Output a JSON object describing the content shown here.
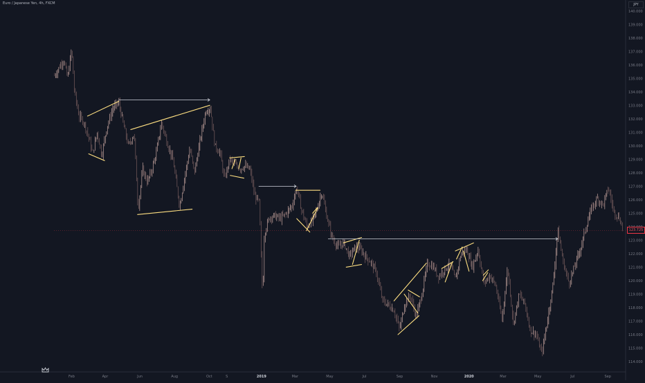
{
  "header": {
    "symbol": "Euro / Japanese Yen, 4h, FXCM"
  },
  "price_axis": {
    "currency_label": "JPY",
    "current_price_label": "123.725"
  },
  "colors": {
    "background": "#131722",
    "axis_line": "#2a2e39",
    "candle_up": "#c8a6a0",
    "candle_down": "#7a5f5f",
    "trendline": "#ffe082",
    "horizontal_ray": "#d1d4dc",
    "price_tag": "#f23645",
    "axis_text": "#787b86"
  },
  "icons": {
    "logo": "crown-logo-icon"
  },
  "chart_data": {
    "type": "line",
    "x_unit": "date",
    "ylim": [
      114,
      140.5
    ],
    "xlim": [
      "2018-01-01",
      "2020-09-30"
    ],
    "y_ticks": [
      "140.000",
      "139.000",
      "138.000",
      "137.000",
      "136.000",
      "135.000",
      "134.000",
      "133.000",
      "132.000",
      "131.000",
      "130.000",
      "129.000",
      "128.000",
      "127.000",
      "126.000",
      "125.000",
      "124.000",
      "123.000",
      "122.000",
      "121.000",
      "120.000",
      "119.000",
      "118.000",
      "117.000",
      "116.000",
      "115.000",
      "114.000"
    ],
    "x_ticks": [
      {
        "label": "Feb",
        "date": "2018-02-01"
      },
      {
        "label": "Apr",
        "date": "2018-04-01"
      },
      {
        "label": "Jun",
        "date": "2018-06-01"
      },
      {
        "label": "Aug",
        "date": "2018-08-01"
      },
      {
        "label": "Oct",
        "date": "2018-10-01"
      },
      {
        "label": "S",
        "date": "2018-11-01"
      },
      {
        "label": "2019",
        "date": "2019-01-01"
      },
      {
        "label": "Mar",
        "date": "2019-03-01"
      },
      {
        "label": "May",
        "date": "2019-05-01"
      },
      {
        "label": "Jul",
        "date": "2019-07-01"
      },
      {
        "label": "Sep",
        "date": "2019-09-01"
      },
      {
        "label": "Nov",
        "date": "2019-11-01"
      },
      {
        "label": "2020",
        "date": "2020-01-01"
      },
      {
        "label": "Mar",
        "date": "2020-03-01"
      },
      {
        "label": "May",
        "date": "2020-05-01"
      },
      {
        "label": "Jul",
        "date": "2020-07-01"
      },
      {
        "label": "Sep",
        "date": "2020-09-01"
      }
    ],
    "price_path": [
      [
        "2018-01-02",
        135.2
      ],
      [
        "2018-01-10",
        135.8
      ],
      [
        "2018-01-18",
        136.4
      ],
      [
        "2018-01-25",
        135.0
      ],
      [
        "2018-02-01",
        137.2
      ],
      [
        "2018-02-06",
        134.0
      ],
      [
        "2018-02-14",
        132.2
      ],
      [
        "2018-02-22",
        131.8
      ],
      [
        "2018-03-02",
        130.8
      ],
      [
        "2018-03-10",
        129.4
      ],
      [
        "2018-03-18",
        131.0
      ],
      [
        "2018-03-26",
        129.3
      ],
      [
        "2018-04-04",
        131.4
      ],
      [
        "2018-04-15",
        132.8
      ],
      [
        "2018-04-25",
        133.2
      ],
      [
        "2018-05-03",
        131.6
      ],
      [
        "2018-05-12",
        130.0
      ],
      [
        "2018-05-22",
        130.9
      ],
      [
        "2018-05-29",
        125.3
      ],
      [
        "2018-06-06",
        128.3
      ],
      [
        "2018-06-14",
        127.3
      ],
      [
        "2018-06-22",
        128.2
      ],
      [
        "2018-06-30",
        129.5
      ],
      [
        "2018-07-09",
        131.7
      ],
      [
        "2018-07-20",
        130.1
      ],
      [
        "2018-07-30",
        128.8
      ],
      [
        "2018-08-10",
        125.5
      ],
      [
        "2018-08-18",
        127.5
      ],
      [
        "2018-08-28",
        129.8
      ],
      [
        "2018-09-05",
        128.0
      ],
      [
        "2018-09-15",
        130.4
      ],
      [
        "2018-09-25",
        132.6
      ],
      [
        "2018-10-03",
        132.8
      ],
      [
        "2018-10-11",
        130.0
      ],
      [
        "2018-10-20",
        129.5
      ],
      [
        "2018-10-28",
        127.5
      ],
      [
        "2018-11-06",
        129.0
      ],
      [
        "2018-11-15",
        128.6
      ],
      [
        "2018-11-24",
        128.3
      ],
      [
        "2018-12-03",
        128.5
      ],
      [
        "2018-12-12",
        128.2
      ],
      [
        "2018-12-20",
        126.3
      ],
      [
        "2018-12-28",
        125.8
      ],
      [
        "2019-01-03",
        118.7
      ],
      [
        "2019-01-06",
        123.5
      ],
      [
        "2019-01-15",
        124.7
      ],
      [
        "2019-01-24",
        124.8
      ],
      [
        "2019-02-03",
        124.6
      ],
      [
        "2019-02-14",
        125.0
      ],
      [
        "2019-02-24",
        125.6
      ],
      [
        "2019-03-04",
        126.9
      ],
      [
        "2019-03-12",
        125.3
      ],
      [
        "2019-03-22",
        124.0
      ],
      [
        "2019-03-31",
        124.4
      ],
      [
        "2019-04-08",
        125.2
      ],
      [
        "2019-04-17",
        126.6
      ],
      [
        "2019-04-26",
        124.7
      ],
      [
        "2019-05-06",
        123.1
      ],
      [
        "2019-05-16",
        122.5
      ],
      [
        "2019-05-26",
        122.8
      ],
      [
        "2019-06-05",
        121.8
      ],
      [
        "2019-06-15",
        122.5
      ],
      [
        "2019-06-25",
        122.3
      ],
      [
        "2019-07-02",
        121.8
      ],
      [
        "2019-07-12",
        121.4
      ],
      [
        "2019-07-22",
        120.6
      ],
      [
        "2019-08-02",
        118.5
      ],
      [
        "2019-08-12",
        118.2
      ],
      [
        "2019-08-22",
        117.8
      ],
      [
        "2019-09-01",
        116.4
      ],
      [
        "2019-09-10",
        118.3
      ],
      [
        "2019-09-20",
        118.9
      ],
      [
        "2019-09-30",
        117.3
      ],
      [
        "2019-10-10",
        119.0
      ],
      [
        "2019-10-20",
        121.3
      ],
      [
        "2019-10-31",
        121.0
      ],
      [
        "2019-11-08",
        120.3
      ],
      [
        "2019-11-18",
        120.8
      ],
      [
        "2019-11-28",
        121.2
      ],
      [
        "2019-12-08",
        120.1
      ],
      [
        "2019-12-18",
        122.0
      ],
      [
        "2019-12-28",
        122.3
      ],
      [
        "2020-01-07",
        121.0
      ],
      [
        "2020-01-17",
        122.3
      ],
      [
        "2020-01-27",
        119.8
      ],
      [
        "2020-02-07",
        120.4
      ],
      [
        "2020-02-17",
        119.6
      ],
      [
        "2020-02-28",
        117.1
      ],
      [
        "2020-03-09",
        121.0
      ],
      [
        "2020-03-19",
        116.8
      ],
      [
        "2020-03-29",
        119.0
      ],
      [
        "2020-04-08",
        118.3
      ],
      [
        "2020-04-18",
        116.3
      ],
      [
        "2020-04-28",
        116.0
      ],
      [
        "2020-05-08",
        114.6
      ],
      [
        "2020-05-18",
        117.1
      ],
      [
        "2020-05-28",
        119.8
      ],
      [
        "2020-06-05",
        123.8
      ],
      [
        "2020-06-15",
        121.3
      ],
      [
        "2020-06-25",
        119.8
      ],
      [
        "2020-07-05",
        121.1
      ],
      [
        "2020-07-15",
        122.4
      ],
      [
        "2020-07-25",
        124.0
      ],
      [
        "2020-08-04",
        125.4
      ],
      [
        "2020-08-14",
        126.1
      ],
      [
        "2020-08-24",
        125.6
      ],
      [
        "2020-09-02",
        126.9
      ],
      [
        "2020-09-12",
        125.1
      ],
      [
        "2020-09-22",
        124.6
      ],
      [
        "2020-09-28",
        123.7
      ]
    ],
    "trendlines": [
      {
        "from": [
          "2018-03-01",
          132.2
        ],
        "to": [
          "2018-04-25",
          133.3
        ]
      },
      {
        "from": [
          "2018-03-03",
          129.4
        ],
        "to": [
          "2018-03-31",
          128.9
        ]
      },
      {
        "from": [
          "2018-05-16",
          131.2
        ],
        "to": [
          "2018-10-02",
          133.0
        ]
      },
      {
        "from": [
          "2018-05-28",
          124.9
        ],
        "to": [
          "2018-09-01",
          125.3
        ]
      },
      {
        "from": [
          "2018-11-06",
          129.1
        ],
        "to": [
          "2018-12-02",
          129.2
        ]
      },
      {
        "from": [
          "2018-11-07",
          127.8
        ],
        "to": [
          "2018-12-01",
          127.6
        ]
      },
      {
        "from": [
          "2018-11-10",
          128.3
        ],
        "to": [
          "2018-11-16",
          129.0
        ]
      },
      {
        "from": [
          "2018-11-22",
          128.3
        ],
        "to": [
          "2018-11-26",
          129.1
        ]
      },
      {
        "from": [
          "2019-03-02",
          126.7
        ],
        "to": [
          "2019-04-14",
          126.7
        ]
      },
      {
        "from": [
          "2019-03-04",
          124.6
        ],
        "to": [
          "2019-03-27",
          123.6
        ]
      },
      {
        "from": [
          "2019-03-21",
          123.7
        ],
        "to": [
          "2019-04-10",
          125.4
        ]
      },
      {
        "from": [
          "2019-04-01",
          125.0
        ],
        "to": [
          "2019-04-09",
          125.4
        ]
      },
      {
        "from": [
          "2019-05-25",
          122.8
        ],
        "to": [
          "2019-06-26",
          123.2
        ]
      },
      {
        "from": [
          "2019-05-30",
          121.0
        ],
        "to": [
          "2019-06-26",
          121.2
        ]
      },
      {
        "from": [
          "2019-06-10",
          121.2
        ],
        "to": [
          "2019-06-22",
          123.0
        ]
      },
      {
        "from": [
          "2019-08-22",
          118.5
        ],
        "to": [
          "2019-10-18",
          121.3
        ]
      },
      {
        "from": [
          "2019-08-29",
          116.0
        ],
        "to": [
          "2019-10-05",
          117.4
        ]
      },
      {
        "from": [
          "2019-09-09",
          119.0
        ],
        "to": [
          "2019-10-03",
          117.6
        ]
      },
      {
        "from": [
          "2019-09-16",
          119.3
        ],
        "to": [
          "2019-10-06",
          118.8
        ]
      },
      {
        "from": [
          "2019-11-14",
          120.9
        ],
        "to": [
          "2019-12-04",
          121.4
        ]
      },
      {
        "from": [
          "2019-11-20",
          119.9
        ],
        "to": [
          "2019-12-03",
          121.4
        ]
      },
      {
        "from": [
          "2019-12-08",
          122.2
        ],
        "to": [
          "2020-01-09",
          122.8
        ]
      },
      {
        "from": [
          "2019-12-10",
          121.6
        ],
        "to": [
          "2019-12-20",
          122.5
        ]
      },
      {
        "from": [
          "2019-12-22",
          122.2
        ],
        "to": [
          "2020-01-01",
          120.7
        ]
      },
      {
        "from": [
          "2020-01-26",
          120.4
        ],
        "to": [
          "2020-02-04",
          120.8
        ]
      },
      {
        "from": [
          "2020-01-25",
          120.0
        ],
        "to": [
          "2020-02-03",
          120.6
        ]
      }
    ],
    "horizontal_rays": [
      {
        "price": 133.4,
        "from": "2018-04-25",
        "to": "2018-10-02"
      },
      {
        "price": 127.0,
        "from": "2018-12-27",
        "to": "2019-03-03"
      },
      {
        "price": 123.1,
        "from": "2019-04-28",
        "to": "2020-06-05"
      }
    ],
    "last_price": 123.725
  }
}
